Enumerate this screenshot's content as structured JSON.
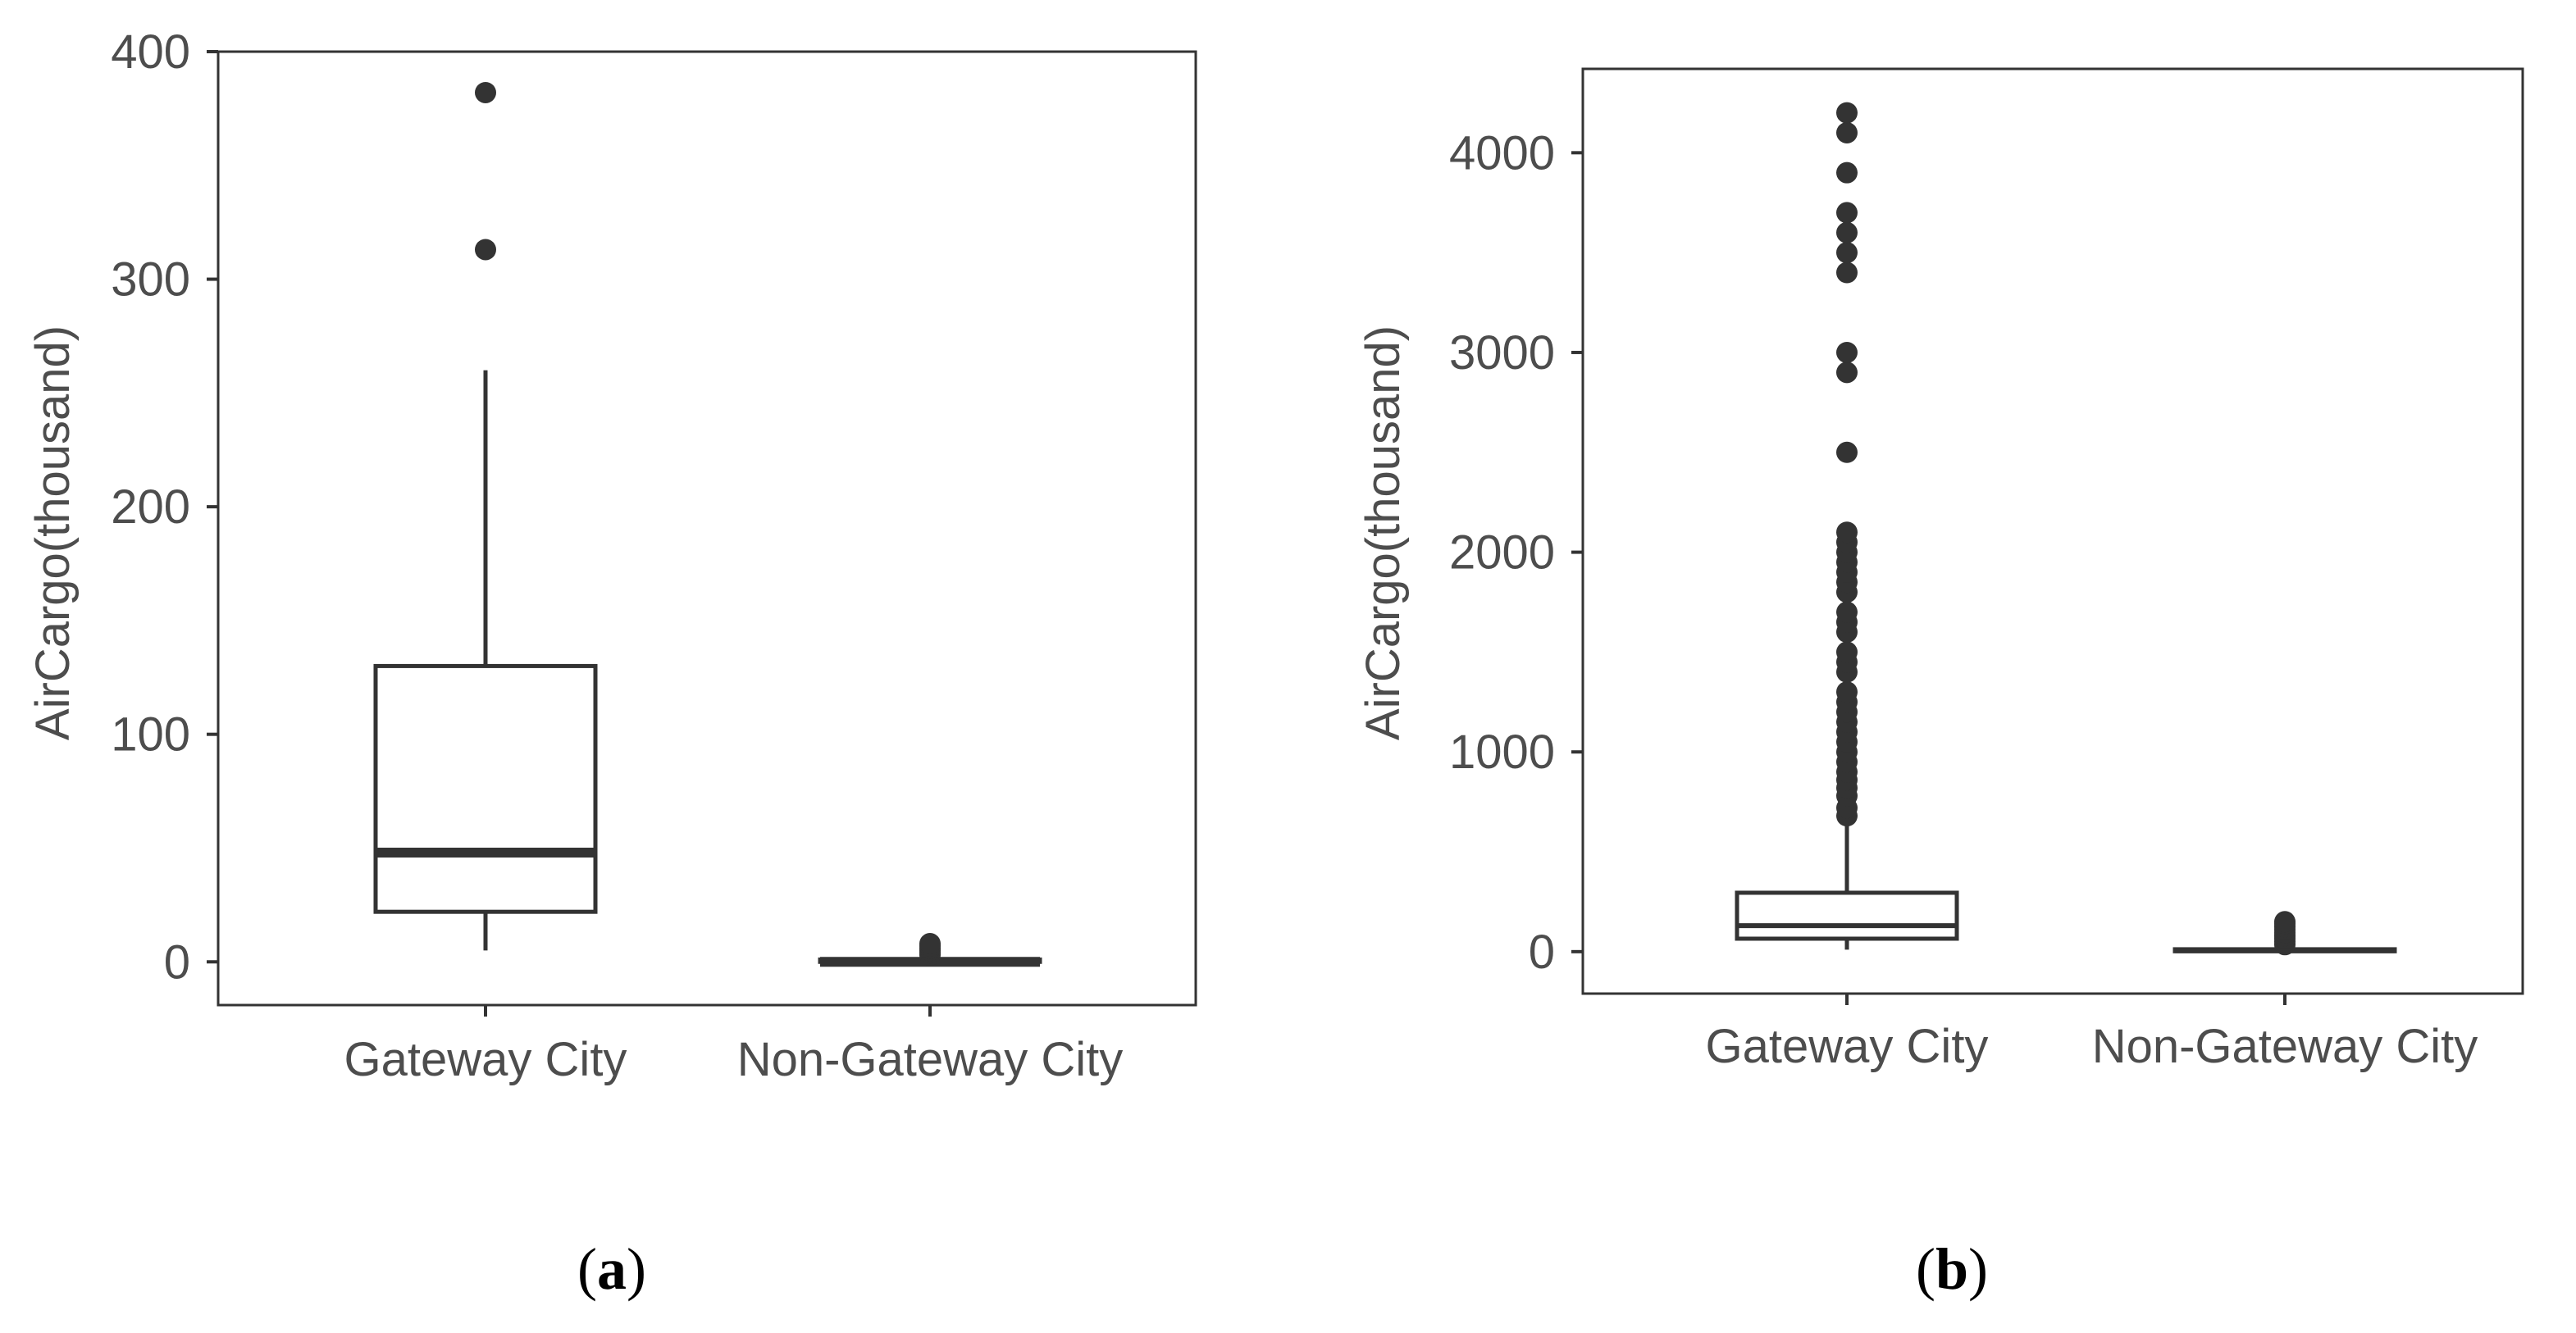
{
  "colors": {
    "ink": "#333333",
    "tick_text": "#4d4d4d",
    "box_fill": "#ffffff",
    "background": "#ffffff"
  },
  "chart_data": [
    {
      "type": "box",
      "panel_label": "a",
      "title": "",
      "xlabel": "",
      "ylabel": "AirCargo(thousand)",
      "categories": [
        "Gateway City",
        "Non-Gateway City"
      ],
      "ylim": [
        -19,
        400
      ],
      "yticks": [
        0,
        100,
        200,
        300,
        400
      ],
      "grid": false,
      "boxes": [
        {
          "category": "Gateway City",
          "whisker_low": 5,
          "q1": 22,
          "median": 48,
          "q3": 130,
          "whisker_high": 260,
          "outliers": [
            313,
            382
          ]
        },
        {
          "category": "Non-Gateway City",
          "whisker_low": 0,
          "q1": 0,
          "median": 0,
          "q3": 1,
          "whisker_high": 2,
          "outliers": [
            3,
            4,
            5,
            6,
            7,
            8
          ]
        }
      ]
    },
    {
      "type": "box",
      "panel_label": "b",
      "title": "",
      "xlabel": "",
      "ylabel": "AirCargo(thousand)",
      "categories": [
        "Gateway City",
        "Non-Gateway City"
      ],
      "ylim": [
        -210,
        4420
      ],
      "yticks": [
        0,
        1000,
        2000,
        3000,
        4000
      ],
      "grid": false,
      "boxes": [
        {
          "category": "Gateway City",
          "whisker_low": 10,
          "q1": 65,
          "median": 130,
          "q3": 295,
          "whisker_high": 640,
          "outliers": [
            680,
            720,
            780,
            820,
            860,
            900,
            950,
            1000,
            1050,
            1100,
            1150,
            1200,
            1250,
            1300,
            1400,
            1450,
            1500,
            1600,
            1650,
            1700,
            1800,
            1850,
            1900,
            1950,
            2000,
            2050,
            2100,
            2500,
            2900,
            3000,
            3400,
            3500,
            3600,
            3700,
            3900,
            4100,
            4200
          ]
        },
        {
          "category": "Non-Gateway City",
          "whisker_low": 0,
          "q1": 2,
          "median": 5,
          "q3": 12,
          "whisker_high": 25,
          "outliers": [
            35,
            50,
            65,
            80,
            95,
            110,
            125,
            140,
            150
          ]
        }
      ]
    }
  ]
}
